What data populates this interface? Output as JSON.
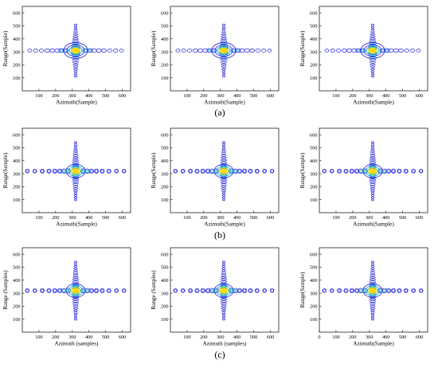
{
  "chart_data": [
    {
      "type": "contour",
      "row": "a",
      "col": 1,
      "xlabel": "Azimuth(Sample)",
      "ylabel": "Range(Sample)",
      "xticks": [
        100,
        200,
        300,
        400,
        500,
        600
      ],
      "yticks": [
        100,
        200,
        300,
        400,
        500,
        600
      ],
      "xlim": [
        0,
        650
      ],
      "ylim": [
        0,
        650
      ],
      "center": [
        320,
        310
      ],
      "shape": "ring-a",
      "font": "serif"
    },
    {
      "type": "contour",
      "row": "a",
      "col": 2,
      "xlabel": "Azimuth(Sample)",
      "ylabel": "Range(Sample)",
      "xticks": [
        100,
        200,
        300,
        400,
        500,
        600
      ],
      "yticks": [
        100,
        200,
        300,
        400,
        500,
        600
      ],
      "xlim": [
        0,
        650
      ],
      "ylim": [
        0,
        650
      ],
      "center": [
        320,
        310
      ],
      "shape": "ring-a",
      "font": "serif"
    },
    {
      "type": "contour",
      "row": "a",
      "col": 3,
      "xlabel": "Azimuth(Sample)",
      "ylabel": "Range(Sample)",
      "xticks": [
        100,
        200,
        300,
        400,
        500,
        600
      ],
      "yticks": [
        100,
        200,
        300,
        400,
        500,
        600
      ],
      "xlim": [
        0,
        650
      ],
      "ylim": [
        0,
        650
      ],
      "center": [
        320,
        310
      ],
      "shape": "ring-a",
      "font": "serif"
    },
    {
      "type": "contour",
      "row": "b",
      "col": 1,
      "xlabel": "Azimuth(Sample)",
      "ylabel": "Range(Sample)",
      "xticks": [
        100,
        200,
        300,
        400,
        500,
        600
      ],
      "yticks": [
        100,
        200,
        300,
        400,
        500,
        600
      ],
      "xlim": [
        0,
        650
      ],
      "ylim": [
        0,
        650
      ],
      "center": [
        320,
        320
      ],
      "shape": "cross-b",
      "font": "serif"
    },
    {
      "type": "contour",
      "row": "b",
      "col": 2,
      "xlabel": "Azimuth(Sample)",
      "ylabel": "Range(Sample)",
      "xticks": [
        100,
        200,
        300,
        400,
        500,
        600
      ],
      "yticks": [
        100,
        200,
        300,
        400,
        500,
        600
      ],
      "xlim": [
        0,
        650
      ],
      "ylim": [
        0,
        650
      ],
      "center": [
        320,
        320
      ],
      "shape": "cross-b",
      "font": "serif"
    },
    {
      "type": "contour",
      "row": "b",
      "col": 3,
      "xlabel": "Azimuth(Sample)",
      "ylabel": "Range(Sample)",
      "xticks": [
        100,
        200,
        300,
        400,
        500,
        600
      ],
      "yticks": [
        100,
        200,
        300,
        400,
        500,
        600
      ],
      "xlim": [
        0,
        650
      ],
      "ylim": [
        0,
        650
      ],
      "center": [
        320,
        320
      ],
      "shape": "cross-b",
      "font": "serif"
    },
    {
      "type": "contour",
      "row": "c",
      "col": 1,
      "xlabel": "Azimuth (samples)",
      "ylabel": "Range (Samples)",
      "xticks": [
        100,
        200,
        300,
        400,
        500,
        600
      ],
      "yticks": [
        100,
        200,
        300,
        400,
        500,
        600
      ],
      "xlim": [
        0,
        650
      ],
      "ylim": [
        0,
        650
      ],
      "center": [
        320,
        320
      ],
      "shape": "cross-c",
      "font": "sans"
    },
    {
      "type": "contour",
      "row": "c",
      "col": 2,
      "xlabel": "Azimuth (samples)",
      "ylabel": "Range (Samples)",
      "xticks": [
        100,
        200,
        300,
        400,
        500,
        600
      ],
      "yticks": [
        100,
        200,
        300,
        400,
        500,
        600
      ],
      "xlim": [
        0,
        650
      ],
      "ylim": [
        0,
        650
      ],
      "center": [
        320,
        320
      ],
      "shape": "cross-c",
      "font": "sans"
    },
    {
      "type": "contour",
      "row": "c",
      "col": 3,
      "xlabel": "Azimuth(Sample)",
      "ylabel": "Range(Sample)",
      "xticks": [
        0,
        100,
        200,
        300,
        400,
        500,
        600
      ],
      "yticks": [
        100,
        200,
        300,
        400,
        500,
        600
      ],
      "xlim": [
        0,
        650
      ],
      "ylim": [
        0,
        650
      ],
      "center": [
        320,
        320
      ],
      "shape": "cross-c",
      "font": "serif"
    }
  ],
  "captions": [
    "(a)",
    "(b)",
    "(c)"
  ],
  "colors": {
    "outer": "#2a2ad8",
    "mid": "#00b4e0",
    "inner": "#9ae04a",
    "core": "#f6e21a",
    "hot": "#ffd200"
  }
}
